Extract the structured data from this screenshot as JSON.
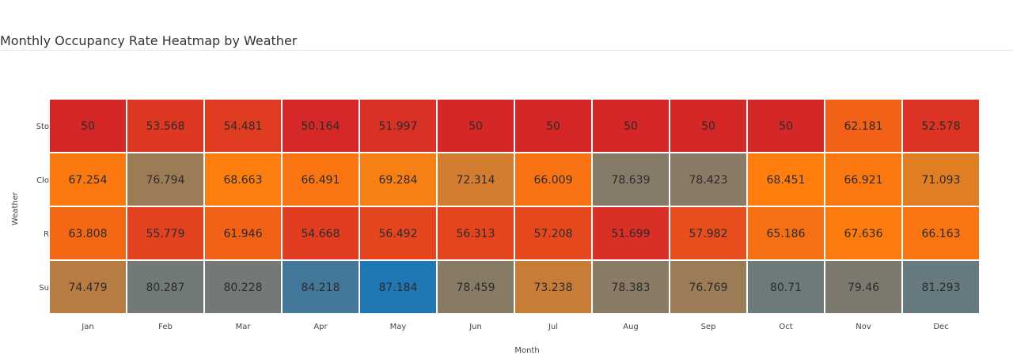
{
  "chart_data": {
    "type": "heatmap",
    "title": "Monthly Occupancy Rate Heatmap by Weather",
    "xlabel": "Month",
    "ylabel": "Weather",
    "x": [
      "Jan",
      "Feb",
      "Mar",
      "Apr",
      "May",
      "Jun",
      "Jul",
      "Aug",
      "Sep",
      "Oct",
      "Nov",
      "Dec"
    ],
    "y": [
      "Stormy",
      "Cloudy",
      "Rainy",
      "Sunny"
    ],
    "y_tick_visible": [
      "Sto",
      "Clo",
      "R",
      "Su"
    ],
    "values": [
      [
        50,
        53.568,
        54.481,
        50.164,
        51.997,
        50,
        50,
        50,
        50,
        50,
        62.181,
        52.578
      ],
      [
        67.254,
        76.794,
        68.663,
        66.491,
        69.284,
        72.314,
        66.009,
        78.639,
        78.423,
        68.451,
        66.921,
        71.093
      ],
      [
        63.808,
        55.779,
        61.946,
        54.668,
        56.492,
        56.313,
        57.208,
        51.699,
        57.982,
        65.186,
        67.636,
        66.163
      ],
      [
        74.479,
        80.287,
        80.228,
        84.218,
        87.184,
        78.459,
        73.238,
        78.383,
        76.769,
        80.71,
        79.46,
        81.293
      ]
    ],
    "color_range": [
      50,
      87.184
    ],
    "colorscale": [
      "#d62728",
      "#ff7f0e",
      "#1f77b4"
    ],
    "legend": "none"
  }
}
